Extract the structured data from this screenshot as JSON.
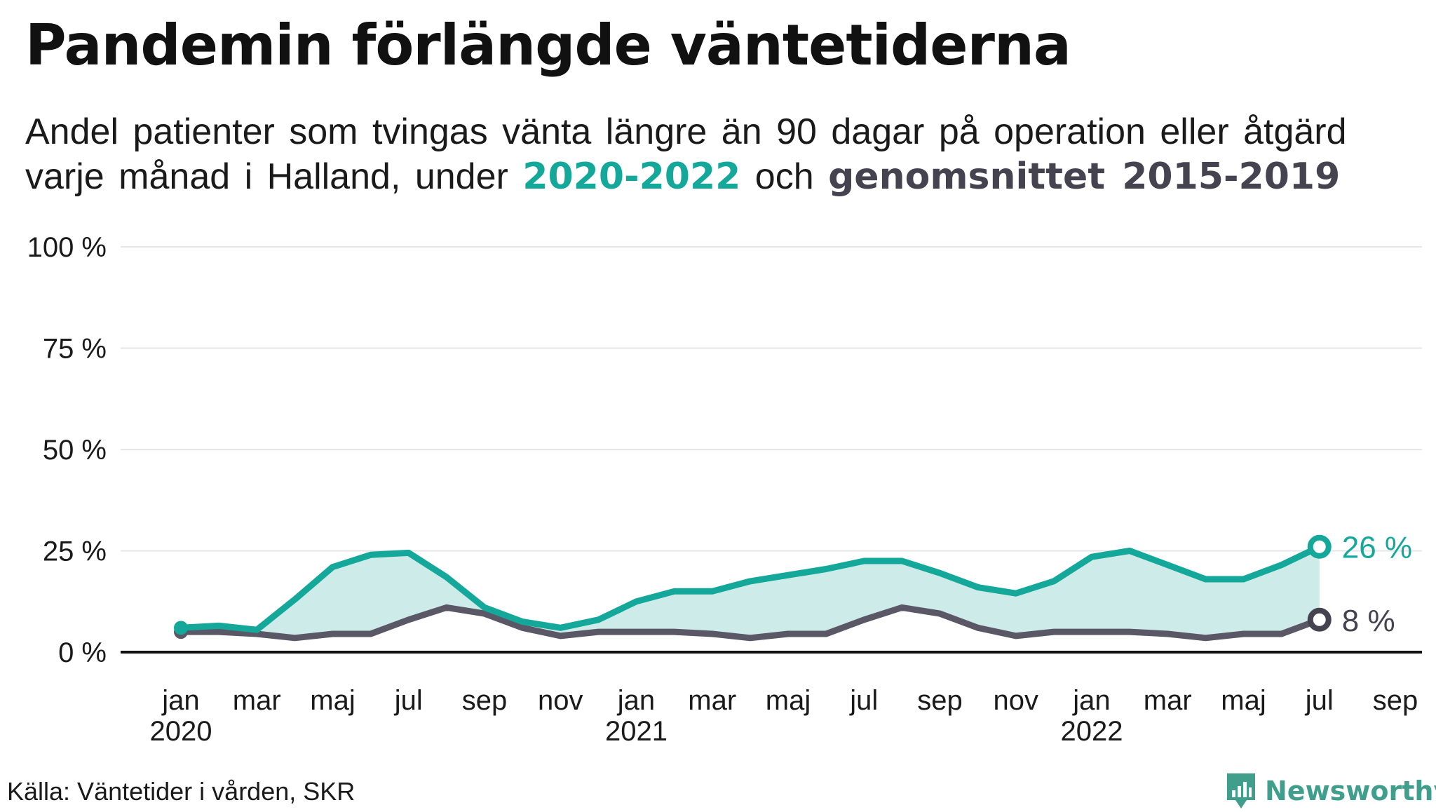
{
  "title": "Pandemin förlängde väntetiderna",
  "subtitle": {
    "part1": "Andel patienter som tvingas vänta längre än 90 dagar på operation eller åtgärd varje månad i Halland, under",
    "highlight_a": "2020-2022",
    "part2": "och",
    "highlight_b": "genomsnittet 2015-2019"
  },
  "source": "Källa: Väntetider i vården, SKR",
  "brand": {
    "name": "Newsworthy",
    "icon": "newsworthy-logo-icon"
  },
  "colors": {
    "series_a": "#14a89b",
    "series_a_fill": "#cdebe8",
    "series_b": "#5a5866",
    "series_b_label": "#45434f",
    "grid": "#e6e6e6",
    "axis": "#111111"
  },
  "chart_data": {
    "type": "area",
    "ylim": [
      0,
      100
    ],
    "y_ticks": [
      0,
      25,
      50,
      75,
      100
    ],
    "y_tick_labels": [
      "0 %",
      "25 %",
      "50 %",
      "75 %",
      "100 %"
    ],
    "x_tick_labels": [
      {
        "month_index": 0,
        "month": "jan",
        "year": "2020"
      },
      {
        "month_index": 2,
        "month": "mar",
        "year": ""
      },
      {
        "month_index": 4,
        "month": "maj",
        "year": ""
      },
      {
        "month_index": 6,
        "month": "jul",
        "year": ""
      },
      {
        "month_index": 8,
        "month": "sep",
        "year": ""
      },
      {
        "month_index": 10,
        "month": "nov",
        "year": ""
      },
      {
        "month_index": 12,
        "month": "jan",
        "year": "2021"
      },
      {
        "month_index": 14,
        "month": "mar",
        "year": ""
      },
      {
        "month_index": 16,
        "month": "maj",
        "year": ""
      },
      {
        "month_index": 18,
        "month": "jul",
        "year": ""
      },
      {
        "month_index": 20,
        "month": "sep",
        "year": ""
      },
      {
        "month_index": 22,
        "month": "nov",
        "year": ""
      },
      {
        "month_index": 24,
        "month": "jan",
        "year": "2022"
      },
      {
        "month_index": 26,
        "month": "mar",
        "year": ""
      },
      {
        "month_index": 28,
        "month": "maj",
        "year": ""
      },
      {
        "month_index": 30,
        "month": "jul",
        "year": ""
      },
      {
        "month_index": 32,
        "month": "sep",
        "year": ""
      }
    ],
    "x_range_months": [
      0,
      32
    ],
    "series": [
      {
        "name": "2020-2022",
        "end_label": "26 %",
        "values": [
          6,
          6.5,
          5.5,
          13,
          21,
          24,
          24.5,
          18.5,
          11,
          7.5,
          6,
          8,
          12.5,
          15,
          15,
          17.5,
          19,
          20.5,
          22.5,
          22.5,
          19.5,
          16,
          14.5,
          17.5,
          23.5,
          25,
          21.5,
          18,
          18,
          21.5,
          26
        ]
      },
      {
        "name": "genomsnittet 2015-2019",
        "end_label": "8 %",
        "values": [
          5,
          5,
          4.5,
          3.5,
          4.5,
          4.5,
          8,
          11,
          9.5,
          6,
          4,
          5,
          5,
          5,
          4.5,
          3.5,
          4.5,
          4.5,
          8,
          11,
          9.5,
          6,
          4,
          5,
          5,
          5,
          4.5,
          3.5,
          4.5,
          4.5,
          8
        ]
      }
    ]
  }
}
